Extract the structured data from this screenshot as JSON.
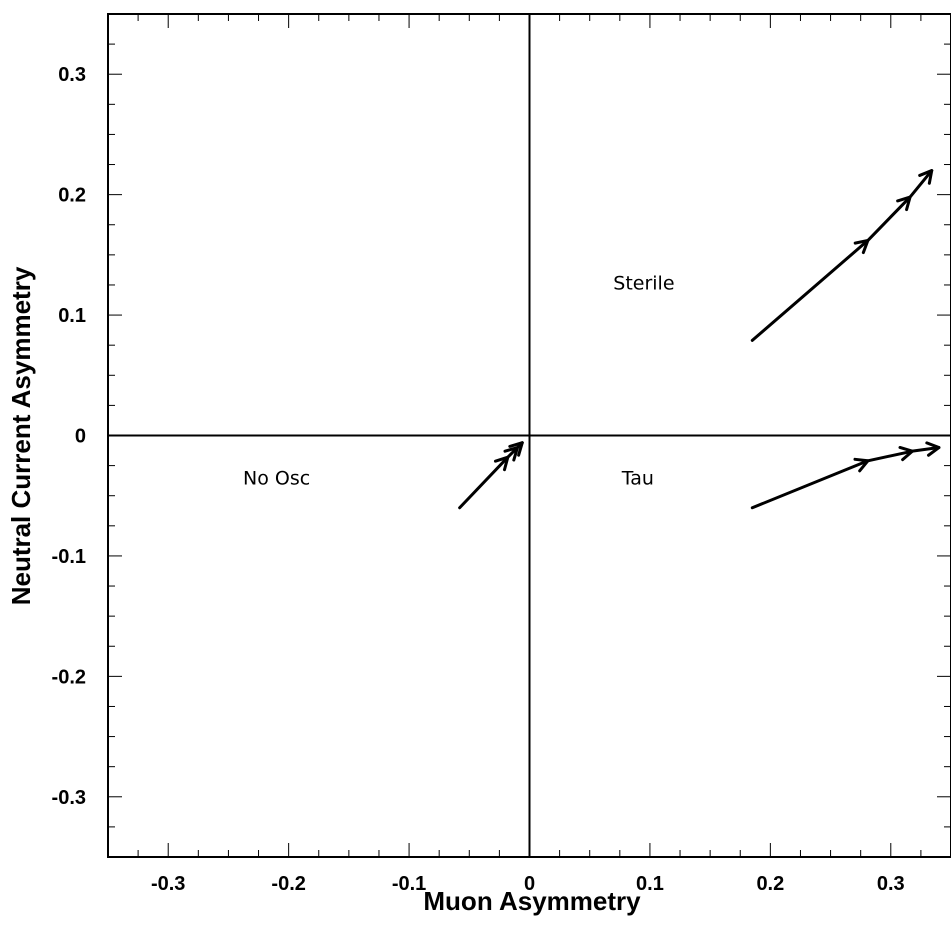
{
  "chart_data": {
    "type": "line",
    "xlabel": "Muon Asymmetry",
    "ylabel": "Neutral Current Asymmetry",
    "xlim": [
      -0.35,
      0.35
    ],
    "ylim": [
      -0.35,
      0.35
    ],
    "xticks": [
      -0.3,
      -0.2,
      -0.1,
      0,
      0.1,
      0.2,
      0.3
    ],
    "yticks": [
      -0.3,
      -0.2,
      -0.1,
      0,
      0.1,
      0.2,
      0.3
    ],
    "xtick_labels": [
      "-0.3",
      "-0.2",
      "-0.1",
      "0",
      "0.1",
      "0.2",
      "0.3"
    ],
    "ytick_labels": [
      "-0.3",
      "-0.2",
      "-0.1",
      "0",
      "0.1",
      "0.2",
      "0.3"
    ],
    "grid": false,
    "zero_lines": true,
    "annotations": [
      {
        "text": "No Osc",
        "x": -0.21,
        "y": -0.035
      },
      {
        "text": "Sterile",
        "x": 0.095,
        "y": 0.127
      },
      {
        "text": "Tau",
        "x": 0.09,
        "y": -0.035
      }
    ],
    "series": [
      {
        "x": [
          -0.058,
          -0.018,
          -0.01,
          -0.006
        ],
        "y": [
          -0.06,
          -0.018,
          -0.01,
          -0.006
        ],
        "arrow_at": [
          1,
          2,
          3
        ]
      },
      {
        "x": [
          0.185,
          0.281,
          0.316,
          0.334
        ],
        "y": [
          0.079,
          0.162,
          0.198,
          0.22
        ],
        "arrow_at": [
          1,
          2,
          3
        ]
      },
      {
        "x": [
          0.185,
          0.281,
          0.318,
          0.34
        ],
        "y": [
          -0.06,
          -0.021,
          -0.013,
          -0.01
        ],
        "arrow_at": [
          1,
          2,
          3
        ]
      }
    ]
  }
}
